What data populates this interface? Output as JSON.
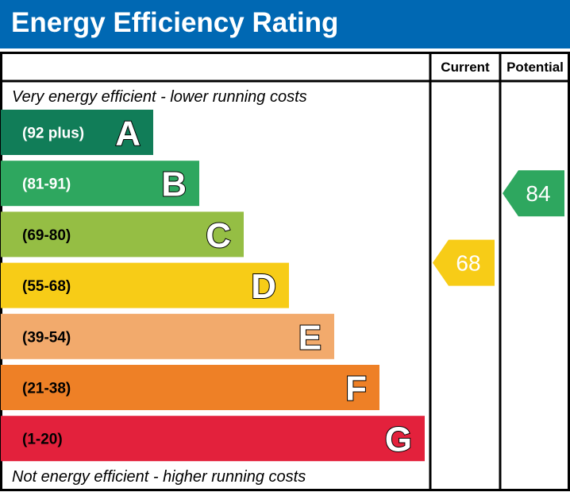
{
  "chart_data": {
    "type": "bar",
    "title": "Energy Efficiency Rating",
    "columns": [
      "Current",
      "Potential"
    ],
    "top_note": "Very energy efficient - lower running costs",
    "bottom_note": "Not energy efficient - higher running costs",
    "bands": [
      {
        "letter": "A",
        "range": "(92 plus)",
        "color": "#117d58",
        "label_color": "#ffffff"
      },
      {
        "letter": "B",
        "range": "(81-91)",
        "color": "#2ea75f",
        "label_color": "#ffffff"
      },
      {
        "letter": "C",
        "range": "(69-80)",
        "color": "#95be44",
        "label_color": "#000000"
      },
      {
        "letter": "D",
        "range": "(55-68)",
        "color": "#f7cc17",
        "label_color": "#000000"
      },
      {
        "letter": "E",
        "range": "(39-54)",
        "color": "#f2aa6c",
        "label_color": "#000000"
      },
      {
        "letter": "F",
        "range": "(21-38)",
        "color": "#ee8026",
        "label_color": "#000000"
      },
      {
        "letter": "G",
        "range": "(1-20)",
        "color": "#e3213c",
        "label_color": "#000000"
      }
    ],
    "ratings": [
      {
        "column": "Current",
        "value": 68,
        "band": "D",
        "color": "#f7cc17"
      },
      {
        "column": "Potential",
        "value": 84,
        "band": "B",
        "color": "#2ea75f"
      }
    ]
  }
}
